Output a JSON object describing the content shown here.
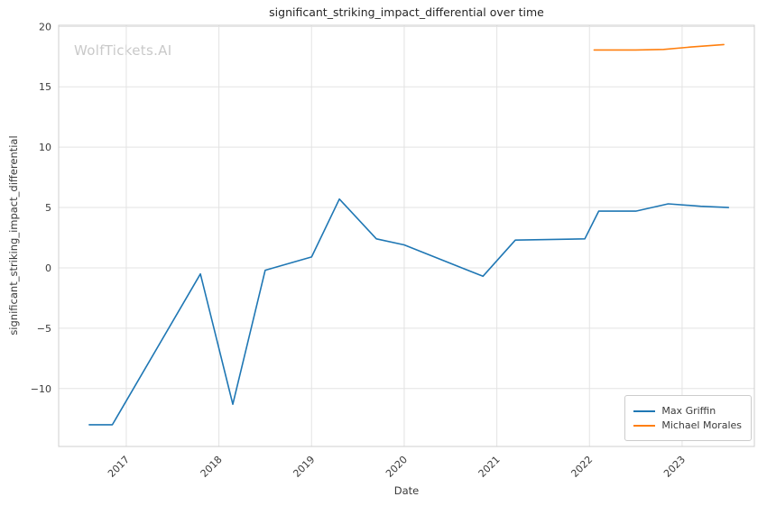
{
  "chart_data": {
    "type": "line",
    "title": "significant_striking_impact_differential over time",
    "xlabel": "Date",
    "ylabel": "significant_striking_impact_differential",
    "watermark": "WolfTickets.AI",
    "xlim": [
      2016.27,
      2023.78
    ],
    "ylim": [
      -14.8,
      20.1
    ],
    "xticks": [
      2017,
      2018,
      2019,
      2020,
      2021,
      2022,
      2023
    ],
    "yticks": [
      -10,
      -5,
      0,
      5,
      10,
      15,
      20
    ],
    "grid": true,
    "legend_position": "lower right",
    "series": [
      {
        "name": "Max Griffin",
        "color": "#1f77b4",
        "x": [
          2016.6,
          2016.85,
          2017.8,
          2018.15,
          2018.5,
          2019.0,
          2019.3,
          2019.7,
          2020.0,
          2020.85,
          2021.2,
          2021.95,
          2022.1,
          2022.5,
          2022.85,
          2023.2,
          2023.5
        ],
        "y": [
          -13.0,
          -13.0,
          -0.5,
          -11.3,
          -0.2,
          0.9,
          5.7,
          2.4,
          1.9,
          -0.7,
          2.3,
          2.4,
          4.7,
          4.7,
          5.3,
          5.1,
          5.0
        ]
      },
      {
        "name": "Michael Morales",
        "color": "#ff7f0e",
        "x": [
          2022.05,
          2022.5,
          2022.8,
          2023.1,
          2023.45
        ],
        "y": [
          18.05,
          18.05,
          18.1,
          18.3,
          18.5
        ]
      }
    ]
  }
}
